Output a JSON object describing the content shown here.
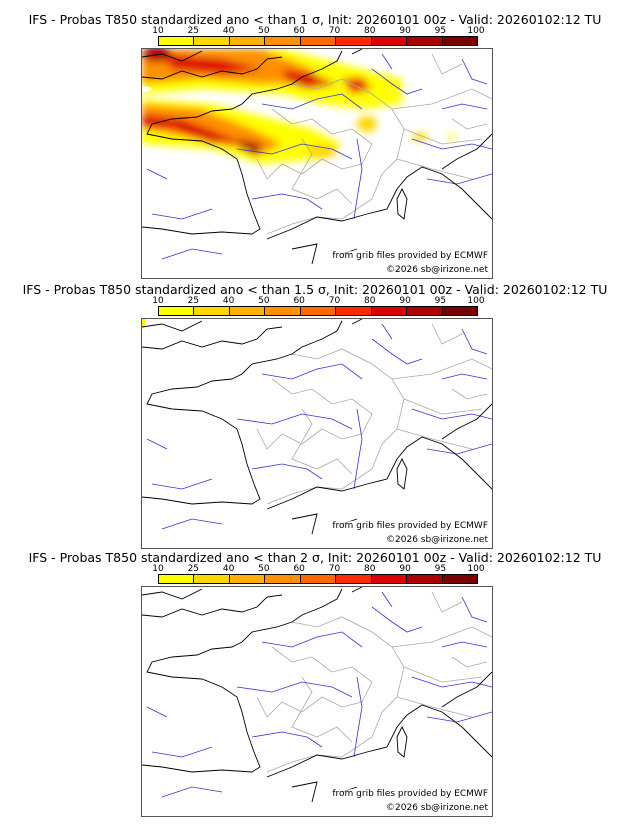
{
  "panels": [
    {
      "title": "IFS - Probas T850  standardized ano < than 1 σ, Init: 20260101 00z - Valid: 20260102:12 TU",
      "has_signal": true
    },
    {
      "title": "IFS - Probas T850  standardized ano < than 1.5 σ, Init: 20260101 00z - Valid: 20260102:12 TU",
      "has_signal": false
    },
    {
      "title": "IFS - Probas T850  standardized ano < than 2 σ, Init: 20260101 00z - Valid: 20260102:12 TU",
      "has_signal": false
    }
  ],
  "colorbar": {
    "ticks": [
      "10",
      "25",
      "40",
      "50",
      "60",
      "70",
      "80",
      "90",
      "95",
      "100"
    ],
    "colors": [
      "#ffff00",
      "#ffd700",
      "#ffb000",
      "#ff9000",
      "#ff6a00",
      "#ff2a00",
      "#dd0000",
      "#aa0000",
      "#7a0000"
    ]
  },
  "credits": {
    "source": "from grib files provided by ECMWF",
    "copyright": "©2026 sb@irizone.net"
  }
}
